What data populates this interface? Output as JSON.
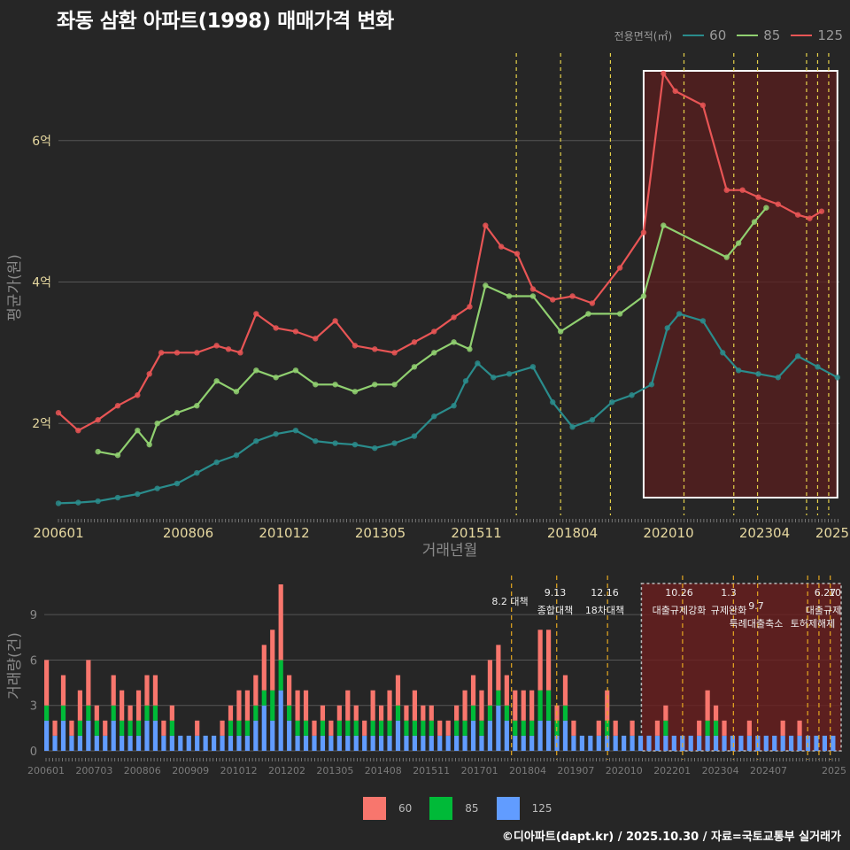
{
  "title": "좌동 삼환 아파트(1998) 매매가격 변화",
  "caption": "©디아파트(dapt.kr) / 2025.10.30 / 자료=국토교통부 실거래가",
  "legend": {
    "title": "전용면적(㎡)",
    "items": [
      {
        "label": "60",
        "line_color": "#2a8c8c",
        "bar_color": "#f8766d"
      },
      {
        "label": "85",
        "line_color": "#90d070",
        "bar_color": "#00ba38"
      },
      {
        "label": "125",
        "line_color": "#e85555",
        "bar_color": "#619cff"
      }
    ]
  },
  "chart_data": [
    {
      "type": "line",
      "title": "좌동 삼환 아파트(1998) 매매가격 변화",
      "xlabel": "거래년월",
      "ylabel": "평균가(원)",
      "x_ticks": [
        "200601",
        "200806",
        "201012",
        "201305",
        "201511",
        "201804",
        "202010",
        "202304",
        "2025"
      ],
      "y_ticks": [
        {
          "value": 2,
          "label": "2억"
        },
        {
          "value": 4,
          "label": "4억"
        },
        {
          "value": 6,
          "label": "6억"
        }
      ],
      "xlim": [
        2006.0,
        2025.75
      ],
      "ylim": [
        0.7,
        7.3
      ],
      "highlight_range": [
        2020.8,
        2025.7
      ],
      "policy_lines": [
        2017.58,
        2018.7,
        2019.96,
        2021.82,
        2023.08,
        2023.68,
        2024.92,
        2025.2,
        2025.48
      ],
      "series": [
        {
          "name": "60",
          "color": "#2a8c8c",
          "x": [
            2006.0,
            2006.5,
            2007.0,
            2007.5,
            2008.0,
            2008.5,
            2009.0,
            2009.5,
            2010.0,
            2010.5,
            2011.0,
            2011.5,
            2012.0,
            2012.5,
            2013.0,
            2013.5,
            2014.0,
            2014.5,
            2015.0,
            2015.5,
            2016.0,
            2016.3,
            2016.6,
            2017.0,
            2017.4,
            2018.0,
            2018.5,
            2019.0,
            2019.5,
            2020.0,
            2020.5,
            2021.0,
            2021.4,
            2021.7,
            2022.3,
            2022.8,
            2023.2,
            2023.7,
            2024.2,
            2024.7,
            2025.2,
            2025.7
          ],
          "values": [
            0.87,
            0.88,
            0.9,
            0.95,
            1.0,
            1.08,
            1.15,
            1.3,
            1.45,
            1.55,
            1.75,
            1.85,
            1.9,
            1.75,
            1.72,
            1.7,
            1.65,
            1.72,
            1.82,
            2.1,
            2.25,
            2.6,
            2.85,
            2.65,
            2.7,
            2.8,
            2.3,
            1.95,
            2.05,
            2.3,
            2.4,
            2.55,
            3.35,
            3.55,
            3.45,
            3.0,
            2.75,
            2.7,
            2.65,
            2.95,
            2.8,
            2.65
          ]
        },
        {
          "name": "85",
          "color": "#90d070",
          "x": [
            2007.0,
            2007.5,
            2008.0,
            2008.3,
            2008.5,
            2009.0,
            2009.5,
            2010.0,
            2010.5,
            2011.0,
            2011.5,
            2012.0,
            2012.5,
            2013.0,
            2013.5,
            2014.0,
            2014.5,
            2015.0,
            2015.5,
            2016.0,
            2016.4,
            2016.8,
            2017.4,
            2018.0,
            2018.7,
            2019.4,
            2020.2,
            2020.8,
            2021.3,
            2022.9,
            2023.2,
            2023.6,
            2023.9
          ],
          "values": [
            1.6,
            1.55,
            1.9,
            1.7,
            2.0,
            2.15,
            2.25,
            2.6,
            2.45,
            2.75,
            2.65,
            2.75,
            2.55,
            2.55,
            2.45,
            2.55,
            2.55,
            2.8,
            3.0,
            3.15,
            3.05,
            3.95,
            3.8,
            3.8,
            3.3,
            3.55,
            3.55,
            3.8,
            4.8,
            4.35,
            4.55,
            4.85,
            5.05
          ]
        },
        {
          "name": "125",
          "color": "#e85555",
          "x": [
            2006.0,
            2006.5,
            2007.0,
            2007.5,
            2008.0,
            2008.3,
            2008.6,
            2009.0,
            2009.5,
            2010.0,
            2010.3,
            2010.6,
            2011.0,
            2011.5,
            2012.0,
            2012.5,
            2013.0,
            2013.5,
            2014.0,
            2014.5,
            2015.0,
            2015.5,
            2016.0,
            2016.4,
            2016.8,
            2017.2,
            2017.6,
            2018.0,
            2018.5,
            2019.0,
            2019.5,
            2020.2,
            2020.8,
            2021.3,
            2021.6,
            2022.3,
            2022.9,
            2023.3,
            2023.7,
            2024.2,
            2024.7,
            2025.0,
            2025.3
          ],
          "values": [
            2.15,
            1.9,
            2.05,
            2.25,
            2.4,
            2.7,
            3.0,
            3.0,
            3.0,
            3.1,
            3.05,
            3.0,
            3.55,
            3.35,
            3.3,
            3.2,
            3.45,
            3.1,
            3.05,
            3.0,
            3.15,
            3.3,
            3.5,
            3.65,
            4.8,
            4.5,
            4.4,
            3.9,
            3.75,
            3.8,
            3.7,
            4.2,
            4.7,
            6.95,
            6.7,
            6.5,
            5.3,
            5.3,
            5.2,
            5.1,
            4.95,
            4.9,
            5.0
          ]
        }
      ]
    },
    {
      "type": "bar",
      "ylabel": "거래량(건)",
      "x_ticks": [
        "200601",
        "200703",
        "200806",
        "200909",
        "201012",
        "201202",
        "201305",
        "201408",
        "201511",
        "201701",
        "201804",
        "201907",
        "202010",
        "202201",
        "202304",
        "202407",
        "2025"
      ],
      "y_ticks": [
        0,
        3,
        6,
        9
      ],
      "xlim": [
        2006.0,
        2025.75
      ],
      "ylim": [
        0,
        11
      ],
      "highlight_range": [
        2020.8,
        2025.75
      ],
      "stacked": true,
      "stack_totals": [
        6,
        2,
        5,
        2,
        4,
        6,
        3,
        2,
        5,
        4,
        3,
        4,
        5,
        5,
        2,
        3,
        1,
        1,
        2,
        1,
        1,
        2,
        3,
        4,
        4,
        5,
        7,
        8,
        11,
        5,
        4,
        4,
        2,
        3,
        2,
        3,
        4,
        3,
        2,
        4,
        3,
        4,
        5,
        3,
        4,
        3,
        3,
        2,
        2,
        3,
        4,
        5,
        4,
        6,
        7,
        5,
        4,
        4,
        4,
        8,
        8,
        3,
        5,
        2,
        1,
        1,
        2,
        4,
        2,
        1,
        2,
        1,
        1,
        2,
        3,
        1,
        1,
        1,
        2,
        4,
        3,
        2,
        1,
        1,
        2,
        1,
        1,
        1,
        2,
        1,
        2,
        1,
        1,
        1,
        1
      ],
      "annotations": [
        {
          "label": "8.2 대책",
          "x": 2017.58
        },
        {
          "label": "9.13",
          "x": 2018.7
        },
        {
          "label": "종합대책",
          "x": 2018.7
        },
        {
          "label": "12.16",
          "x": 2019.96
        },
        {
          "label": "18차대책",
          "x": 2019.96
        },
        {
          "label": "10.26",
          "x": 2021.82
        },
        {
          "label": "대출규제강화",
          "x": 2021.82
        },
        {
          "label": "1.3",
          "x": 2023.08
        },
        {
          "label": "규제완화",
          "x": 2023.08
        },
        {
          "label": "9.7",
          "x": 2023.68
        },
        {
          "label": "특례대출축소",
          "x": 2023.68
        },
        {
          "label": "토허제해제",
          "x": 2024.92
        },
        {
          "label": "6.27",
          "x": 2025.2
        },
        {
          "label": "10",
          "x": 2025.48
        },
        {
          "label": "대출규제",
          "x": 2025.2
        }
      ]
    }
  ]
}
